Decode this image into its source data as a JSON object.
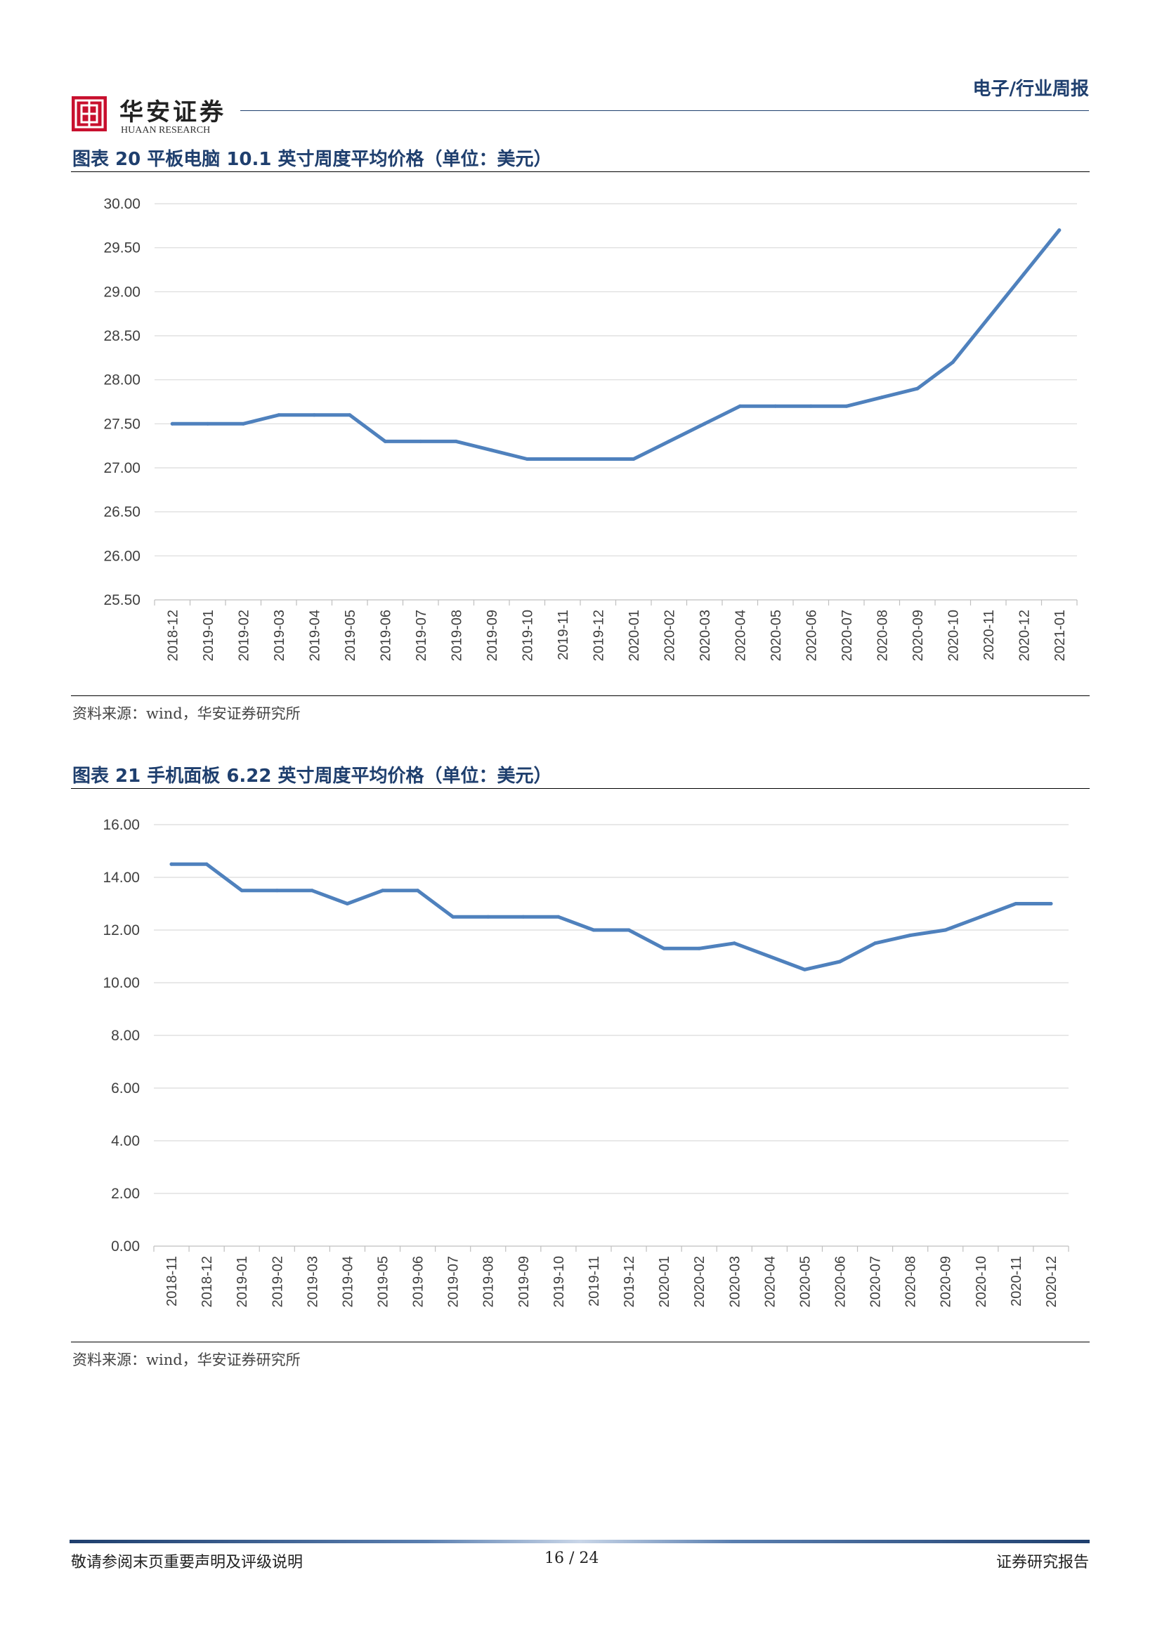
{
  "header": {
    "brand_cn": "华安证券",
    "brand_en": "HUAAN RESEARCH",
    "section": "电子/行业周报"
  },
  "charts": {
    "chart1": {
      "title": "图表 20  平板电脑 10.1 英寸周度平均价格（单位：美元）",
      "source": "资料来源：wind，华安证券研究所"
    },
    "chart2": {
      "title": "图表 21  手机面板 6.22 英寸周度平均价格（单位：美元）",
      "source": "资料来源：wind，华安证券研究所"
    }
  },
  "chart_data": [
    {
      "type": "line",
      "title": "图表 20  平板电脑 10.1 英寸周度平均价格（单位：美元）",
      "categories": [
        "2018-12",
        "2019-01",
        "2019-02",
        "2019-03",
        "2019-04",
        "2019-05",
        "2019-06",
        "2019-07",
        "2019-08",
        "2019-09",
        "2019-10",
        "2019-11",
        "2019-12",
        "2020-01",
        "2020-02",
        "2020-03",
        "2020-04",
        "2020-05",
        "2020-06",
        "2020-07",
        "2020-08",
        "2020-09",
        "2020-10",
        "2020-11",
        "2020-12",
        "2021-01"
      ],
      "series": [
        {
          "values": [
            27.5,
            27.5,
            27.5,
            27.6,
            27.6,
            27.6,
            27.3,
            27.3,
            27.3,
            27.2,
            27.1,
            27.1,
            27.1,
            27.1,
            27.3,
            27.5,
            27.7,
            27.7,
            27.7,
            27.7,
            27.8,
            27.9,
            28.2,
            28.7,
            29.2,
            29.7
          ]
        }
      ],
      "ylim": [
        25.5,
        30.0
      ],
      "yticks": [
        "25.50",
        "26.00",
        "26.50",
        "27.00",
        "27.50",
        "28.00",
        "28.50",
        "29.00",
        "29.50",
        "30.00"
      ],
      "grid": true,
      "line_color": "#4f81bd"
    },
    {
      "type": "line",
      "title": "图表 21  手机面板 6.22 英寸周度平均价格（单位：美元）",
      "categories": [
        "2018-11",
        "2018-12",
        "2019-01",
        "2019-02",
        "2019-03",
        "2019-04",
        "2019-05",
        "2019-06",
        "2019-07",
        "2019-08",
        "2019-09",
        "2019-10",
        "2019-11",
        "2019-12",
        "2020-01",
        "2020-02",
        "2020-03",
        "2020-04",
        "2020-05",
        "2020-06",
        "2020-07",
        "2020-08",
        "2020-09",
        "2020-10",
        "2020-11",
        "2020-12"
      ],
      "series": [
        {
          "values": [
            14.5,
            14.5,
            13.5,
            13.5,
            13.5,
            13.0,
            13.5,
            13.5,
            12.5,
            12.5,
            12.5,
            12.5,
            12.0,
            12.0,
            11.3,
            11.3,
            11.5,
            11.0,
            10.5,
            10.8,
            11.5,
            11.8,
            12.0,
            12.5,
            13.0,
            13.0
          ]
        }
      ],
      "ylim": [
        0,
        16
      ],
      "yticks": [
        "0.00",
        "2.00",
        "4.00",
        "6.00",
        "8.00",
        "10.00",
        "12.00",
        "14.00",
        "16.00"
      ],
      "grid": true,
      "line_color": "#4f81bd"
    }
  ],
  "footer": {
    "left": "敬请参阅末页重要声明及评级说明",
    "page": "16 / 24",
    "right": "证券研究报告"
  }
}
